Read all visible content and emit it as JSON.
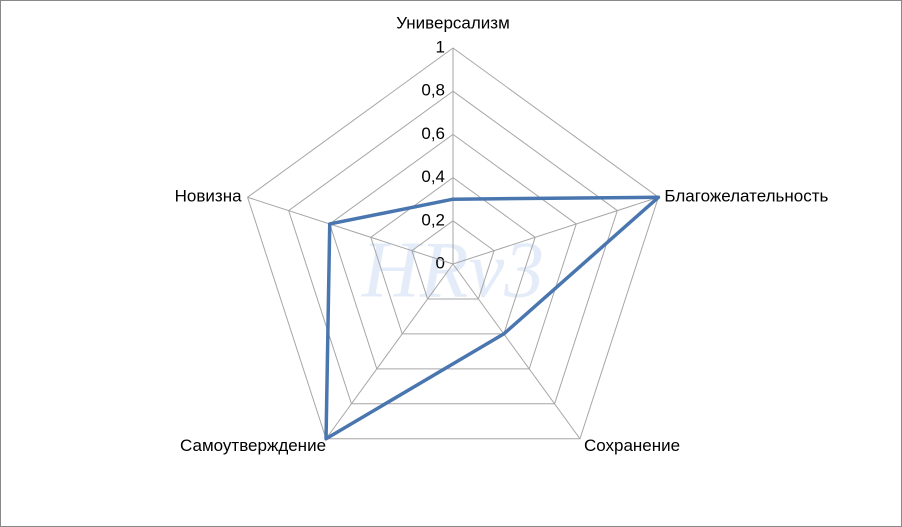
{
  "chart_data": {
    "type": "radar",
    "categories": [
      "Универсализм",
      "Благожелательность",
      "Сохранение",
      "Самоутверждение",
      "Новизна"
    ],
    "series": [
      {
        "color": "#4a76b0",
        "values": [
          0.3,
          1.0,
          0.4,
          1.0,
          0.6
        ]
      }
    ],
    "ylim": [
      0,
      1
    ],
    "yticks": [
      0,
      {
        "value": 0.2,
        "label": "0,2"
      },
      {
        "value": 0.4,
        "label": "0,4"
      },
      {
        "value": 0.6,
        "label": "0,6"
      },
      {
        "value": 0.8,
        "label": "0,8"
      },
      1
    ],
    "grid": true,
    "watermark": "HRv3"
  }
}
